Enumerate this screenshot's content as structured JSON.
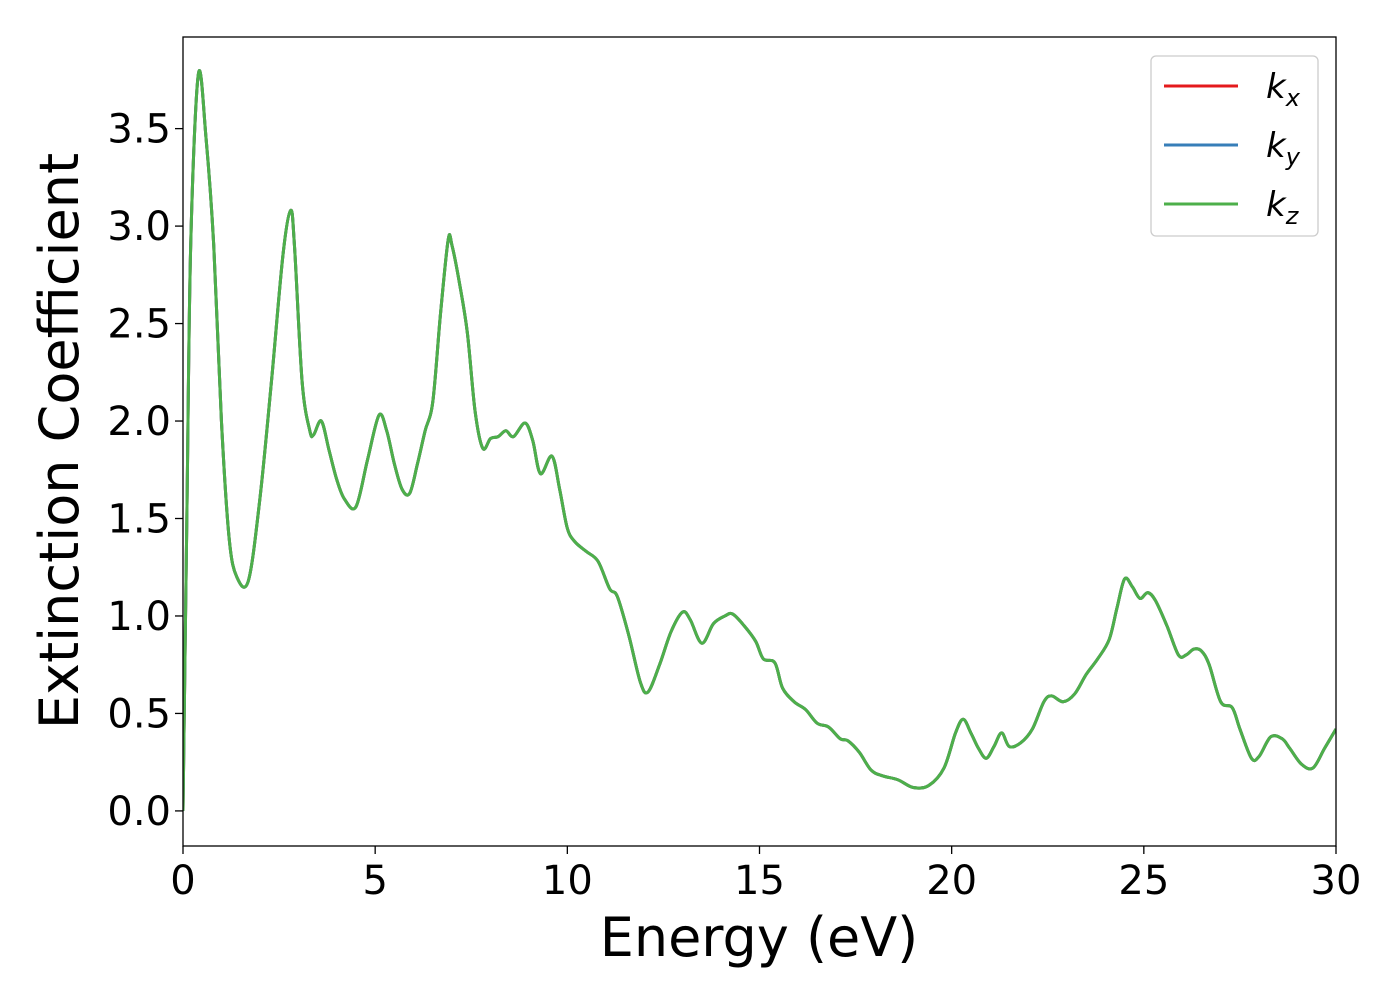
{
  "chart_data": {
    "type": "line",
    "title": "",
    "xlabel": "Energy (eV)",
    "ylabel": "Extinction Coefficient",
    "xlim": [
      0,
      30
    ],
    "ylim": [
      -0.18,
      3.97
    ],
    "xticks": [
      0,
      5,
      10,
      15,
      20,
      25,
      30
    ],
    "xtick_labels": [
      "0",
      "5",
      "10",
      "15",
      "20",
      "25",
      "30"
    ],
    "yticks": [
      0.0,
      0.5,
      1.0,
      1.5,
      2.0,
      2.5,
      3.0,
      3.5
    ],
    "ytick_labels": [
      "0.0",
      "0.5",
      "1.0",
      "1.5",
      "2.0",
      "2.5",
      "3.0",
      "3.5"
    ],
    "grid": false,
    "legend_position": "top-right",
    "series": [
      {
        "name": "k_x",
        "label_base": "k",
        "label_sub": "x",
        "color": "#e41a1c"
      },
      {
        "name": "k_y",
        "label_base": "k",
        "label_sub": "y",
        "color": "#377eb8"
      },
      {
        "name": "k_z",
        "label_base": "k",
        "label_sub": "z",
        "color": "#4daf4a"
      }
    ],
    "x": [
      0,
      0.1,
      0.2,
      0.4,
      0.6,
      0.8,
      1.0,
      1.2,
      1.4,
      1.7,
      2.0,
      2.3,
      2.6,
      2.8,
      2.9,
      3.1,
      3.3,
      3.4,
      3.6,
      3.8,
      4.0,
      4.2,
      4.5,
      4.8,
      5.1,
      5.3,
      5.5,
      5.7,
      5.9,
      6.1,
      6.3,
      6.5,
      6.7,
      6.9,
      7.0,
      7.2,
      7.4,
      7.6,
      7.8,
      8.0,
      8.2,
      8.4,
      8.6,
      8.9,
      9.1,
      9.3,
      9.6,
      9.8,
      10.0,
      10.2,
      10.5,
      10.8,
      11.1,
      11.3,
      11.6,
      11.9,
      12.1,
      12.4,
      12.7,
      13.0,
      13.2,
      13.5,
      13.8,
      14.1,
      14.3,
      14.6,
      14.9,
      15.1,
      15.4,
      15.6,
      15.9,
      16.2,
      16.5,
      16.8,
      17.1,
      17.3,
      17.6,
      17.9,
      18.2,
      18.6,
      19.0,
      19.4,
      19.8,
      20.1,
      20.3,
      20.5,
      20.7,
      20.9,
      21.1,
      21.3,
      21.5,
      21.8,
      22.1,
      22.4,
      22.6,
      22.9,
      23.2,
      23.5,
      23.8,
      24.1,
      24.3,
      24.5,
      24.7,
      24.9,
      25.1,
      25.3,
      25.6,
      25.9,
      26.1,
      26.3,
      26.5,
      26.7,
      27.0,
      27.3,
      27.5,
      27.8,
      28.0,
      28.3,
      28.6,
      28.8,
      29.1,
      29.4,
      29.7,
      30.0
    ],
    "y": [
      0.0,
      1.5,
      2.9,
      3.78,
      3.45,
      2.9,
      2.0,
      1.4,
      1.2,
      1.18,
      1.6,
      2.2,
      2.85,
      3.08,
      2.9,
      2.2,
      1.95,
      1.93,
      2.0,
      1.85,
      1.7,
      1.6,
      1.56,
      1.8,
      2.03,
      1.95,
      1.78,
      1.65,
      1.63,
      1.78,
      1.95,
      2.1,
      2.55,
      2.93,
      2.9,
      2.7,
      2.45,
      2.05,
      1.86,
      1.91,
      1.92,
      1.95,
      1.92,
      1.99,
      1.9,
      1.73,
      1.82,
      1.65,
      1.45,
      1.38,
      1.33,
      1.28,
      1.14,
      1.1,
      0.9,
      0.66,
      0.61,
      0.75,
      0.92,
      1.02,
      0.98,
      0.86,
      0.96,
      1.0,
      1.01,
      0.95,
      0.87,
      0.78,
      0.76,
      0.63,
      0.56,
      0.52,
      0.45,
      0.43,
      0.37,
      0.36,
      0.3,
      0.21,
      0.18,
      0.16,
      0.12,
      0.13,
      0.22,
      0.4,
      0.47,
      0.4,
      0.32,
      0.27,
      0.33,
      0.4,
      0.33,
      0.35,
      0.42,
      0.56,
      0.59,
      0.56,
      0.6,
      0.7,
      0.78,
      0.88,
      1.04,
      1.19,
      1.15,
      1.09,
      1.12,
      1.08,
      0.95,
      0.8,
      0.8,
      0.83,
      0.82,
      0.75,
      0.56,
      0.53,
      0.42,
      0.27,
      0.28,
      0.38,
      0.37,
      0.32,
      0.24,
      0.22,
      0.32,
      0.42
    ]
  }
}
